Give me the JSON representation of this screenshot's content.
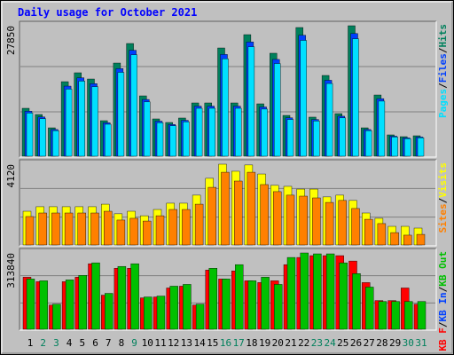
{
  "title": "Daily usage for October 2021",
  "chart_data": [
    {
      "type": "bar",
      "ylim": [
        0,
        27850
      ],
      "yticks": [
        27850
      ],
      "grid": true,
      "legend_reverse": true,
      "legend_separator": "/",
      "series": [
        {
          "name": "Hits",
          "color": "#00805c",
          "values": [
            10230,
            8900,
            6060,
            15910,
            17810,
            16480,
            7580,
            19890,
            24060,
            12880,
            7960,
            7200,
            8150,
            11370,
            11370,
            23110,
            11370,
            25950,
            11180,
            21980,
            8710,
            27470,
            8340,
            17240,
            9090,
            27850,
            6060,
            13070,
            4550,
            4170,
            4360
          ]
        },
        {
          "name": "Files",
          "color": "#0040ff",
          "values": [
            9620,
            8370,
            5700,
            14960,
            16740,
            15490,
            7130,
            18700,
            22620,
            12110,
            7480,
            6770,
            7660,
            10690,
            10690,
            21720,
            10690,
            24390,
            10510,
            20660,
            8190,
            25820,
            7840,
            16210,
            8540,
            26180,
            5700,
            12290,
            4280,
            3920,
            4100
          ]
        },
        {
          "name": "Pages",
          "color": "#00e0ff",
          "values": [
            9210,
            8010,
            5450,
            14320,
            16030,
            14830,
            6820,
            17900,
            21650,
            11590,
            7160,
            6480,
            7340,
            10230,
            10230,
            20800,
            10230,
            23360,
            10060,
            19780,
            7840,
            24720,
            7510,
            15520,
            8180,
            25070,
            5450,
            11760,
            4100,
            3750,
            3920
          ]
        }
      ]
    },
    {
      "type": "bar",
      "ylim": [
        0,
        4120
      ],
      "yticks": [
        4120
      ],
      "grid": true,
      "legend_reverse": true,
      "legend_separator": "/",
      "series": [
        {
          "name": "Visits",
          "color": "#ffff00",
          "values": [
            1720,
            1950,
            1950,
            1950,
            1950,
            1950,
            2080,
            1590,
            1720,
            1490,
            1810,
            2130,
            2130,
            2540,
            3400,
            4120,
            3760,
            4080,
            3620,
            3040,
            2990,
            2850,
            2850,
            2450,
            2540,
            2270,
            1630,
            1360,
            950,
            950,
            860
          ]
        },
        {
          "name": "Sites",
          "color": "#ff8000",
          "values": [
            1450,
            1630,
            1630,
            1630,
            1630,
            1630,
            1720,
            1270,
            1360,
            1220,
            1490,
            1810,
            1810,
            2080,
            2940,
            3710,
            3260,
            3710,
            3080,
            2720,
            2540,
            2490,
            2400,
            2170,
            2270,
            1860,
            1310,
            1090,
            630,
            500,
            540
          ]
        }
      ]
    },
    {
      "type": "bar",
      "ylim": [
        0,
        313840
      ],
      "yticks": [
        313840
      ],
      "grid": true,
      "legend_reverse": false,
      "legend_separator": "/",
      "categories": [
        "1",
        "2",
        "3",
        "4",
        "5",
        "6",
        "7",
        "8",
        "9",
        "10",
        "11",
        "12",
        "13",
        "14",
        "15",
        "16",
        "17",
        "18",
        "19",
        "20",
        "21",
        "22",
        "23",
        "24",
        "25",
        "26",
        "27",
        "28",
        "29",
        "30",
        "31"
      ],
      "category_colors": [
        "#000000",
        "#00805c",
        "#00805c",
        "#000000",
        "#000000",
        "#000000",
        "#000000",
        "#000000",
        "#00805c",
        "#000000",
        "#000000",
        "#000000",
        "#000000",
        "#000000",
        "#000000",
        "#00805c",
        "#00805c",
        "#000000",
        "#000000",
        "#000000",
        "#000000",
        "#000000",
        "#00805c",
        "#00805c",
        "#000000",
        "#000000",
        "#000000",
        "#000000",
        "#000000",
        "#00805c",
        "#00805c"
      ],
      "series": [
        {
          "name": "KB F",
          "color": "#ff0000",
          "values": [
            214140,
            195680,
            99680,
            195680,
            214140,
            269520,
            140300,
            251060,
            251060,
            129220,
            132910,
            169830,
            177220,
            99680,
            243670,
            206750,
            239980,
            199370,
            191980,
            199370,
            265820,
            295360,
            302740,
            302740,
            302740,
            280590,
            191980,
            118140,
            118140,
            169830,
            103380
          ]
        },
        {
          "name": "KB In",
          "color": "#0040ff",
          "values": [
            0,
            0,
            0,
            0,
            0,
            0,
            0,
            0,
            0,
            0,
            0,
            0,
            0,
            0,
            0,
            0,
            0,
            0,
            0,
            0,
            0,
            0,
            0,
            0,
            0,
            0,
            0,
            0,
            0,
            0,
            0
          ]
        },
        {
          "name": "KB Out",
          "color": "#00c000",
          "values": [
            206750,
            199370,
            103380,
            203060,
            221520,
            273210,
            147680,
            258440,
            269520,
            132910,
            136600,
            177220,
            184600,
            103380,
            251060,
            206750,
            265820,
            199370,
            214140,
            184600,
            295360,
            313840,
            310130,
            310130,
            273210,
            228900,
            173520,
            114450,
            114450,
            114450,
            114450
          ]
        }
      ]
    }
  ]
}
